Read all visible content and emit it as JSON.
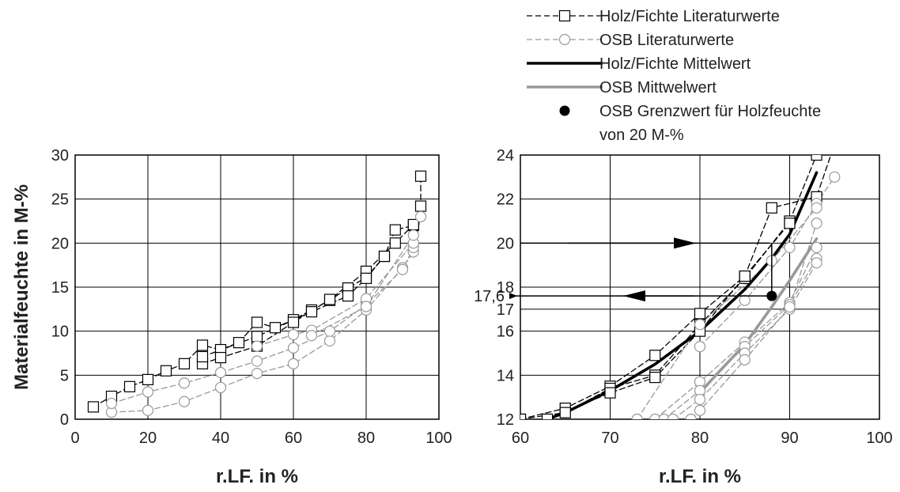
{
  "chart_data": [
    {
      "type": "line",
      "xlabel": "r.LF. in %",
      "ylabel": "Materialfeuchte in M-%",
      "xlim": [
        0,
        100
      ],
      "ylim": [
        0,
        30
      ],
      "xticks": [
        0,
        20,
        40,
        60,
        80,
        100
      ],
      "yticks": [
        0,
        5,
        10,
        15,
        20,
        25,
        30
      ],
      "grid": true,
      "series": [
        {
          "name": "Holz/Fichte Literaturwerte",
          "style": "dashed-black-square",
          "points": [
            [
              5,
              1.4
            ],
            [
              10,
              2.6
            ],
            [
              15,
              3.7
            ],
            [
              20,
              4.5
            ],
            [
              25,
              5.5
            ],
            [
              30,
              6.3
            ],
            [
              35,
              8.4
            ],
            [
              40,
              7.9
            ],
            [
              45,
              8.7
            ],
            [
              50,
              11.0
            ],
            [
              55,
              10.4
            ],
            [
              60,
              11.3
            ],
            [
              65,
              12.4
            ],
            [
              70,
              13.5
            ],
            [
              75,
              14.9
            ],
            [
              80,
              16.1
            ],
            [
              85,
              18.5
            ],
            [
              88,
              21.5
            ],
            [
              93,
              22.0
            ],
            [
              95,
              24.2
            ],
            [
              95,
              27.6
            ]
          ]
        },
        {
          "name": "Holz/Fichte Literaturwerte",
          "style": "dashed-black-square",
          "points": [
            [
              35,
              6.3
            ],
            [
              40,
              7.0
            ],
            [
              50,
              8.3
            ],
            [
              60,
              11.0
            ],
            [
              70,
              13.6
            ],
            [
              80,
              16.8
            ],
            [
              88,
              20.0
            ],
            [
              93,
              22.1
            ]
          ]
        },
        {
          "name": "Holz/Fichte Literaturwerte",
          "style": "dashed-black-square",
          "points": [
            [
              35,
              7.1
            ],
            [
              50,
              9.4
            ],
            [
              65,
              12.2
            ],
            [
              75,
              14.0
            ],
            [
              80,
              16.0
            ],
            [
              85,
              18.5
            ]
          ]
        },
        {
          "name": "OSB Literaturwerte",
          "style": "dashed-gray-circle",
          "points": [
            [
              10,
              0.8
            ],
            [
              20,
              1.0
            ],
            [
              30,
              2.0
            ],
            [
              40,
              3.6
            ],
            [
              50,
              5.2
            ],
            [
              60,
              6.3
            ],
            [
              70,
              8.9
            ],
            [
              80,
              12.4
            ],
            [
              90,
              17.2
            ],
            [
              93,
              19.0
            ],
            [
              95,
              23.0
            ]
          ]
        },
        {
          "name": "OSB Literaturwerte",
          "style": "dashed-gray-circle",
          "points": [
            [
              10,
              1.8
            ],
            [
              20,
              3.1
            ],
            [
              30,
              4.1
            ],
            [
              40,
              5.3
            ],
            [
              50,
              6.6
            ],
            [
              60,
              8.1
            ],
            [
              70,
              10.0
            ],
            [
              80,
              13.0
            ],
            [
              90,
              17.0
            ],
            [
              93,
              19.5
            ]
          ]
        },
        {
          "name": "OSB Literaturwerte",
          "style": "dashed-gray-circle",
          "points": [
            [
              50,
              8.3
            ],
            [
              60,
              9.6
            ],
            [
              65,
              10.1
            ],
            [
              80,
              13.7
            ],
            [
              93,
              20.0
            ]
          ]
        },
        {
          "name": "OSB Literaturwerte",
          "style": "dashed-gray-circle",
          "points": [
            [
              65,
              9.5
            ],
            [
              80,
              12.8
            ],
            [
              93,
              20.9
            ]
          ]
        }
      ]
    },
    {
      "type": "line",
      "xlabel": "r.LF. in %",
      "ylabel": "",
      "xlim": [
        60,
        100
      ],
      "ylim": [
        12,
        24
      ],
      "xticks": [
        60,
        70,
        80,
        90,
        100
      ],
      "yticks": [
        12,
        14,
        16,
        17,
        18,
        20,
        22,
        24
      ],
      "grid": true,
      "annotation_label": "17,6",
      "annotation_value": 17.6,
      "threshold_point": [
        88,
        17.6
      ],
      "threshold_value": 20,
      "series": [
        {
          "name": "Holz/Fichte Literaturwerte",
          "style": "dashed-black-square",
          "points": [
            [
              60,
              12.0
            ],
            [
              65,
              12.5
            ],
            [
              70,
              13.5
            ],
            [
              75,
              14.9
            ],
            [
              80,
              16.8
            ],
            [
              85,
              18.5
            ],
            [
              88,
              21.6
            ],
            [
              93,
              22.1
            ],
            [
              95,
              24.5
            ]
          ]
        },
        {
          "name": "Holz/Fichte Literaturwerte",
          "style": "dashed-black-square",
          "points": [
            [
              60,
              12.0
            ],
            [
              65,
              12.3
            ],
            [
              70,
              13.4
            ],
            [
              75,
              14.0
            ],
            [
              80,
              16.3
            ],
            [
              85,
              18.4
            ],
            [
              90,
              21.0
            ],
            [
              93,
              24.0
            ]
          ]
        },
        {
          "name": "Holz/Fichte Literaturwerte",
          "style": "dashed-black-square",
          "points": [
            [
              63,
              12.0
            ],
            [
              70,
              13.2
            ],
            [
              75,
              13.9
            ],
            [
              80,
              16.0
            ],
            [
              85,
              18.5
            ],
            [
              90,
              20.9
            ]
          ]
        },
        {
          "name": "OSB Literaturwerte",
          "style": "dashed-gray-circle",
          "points": [
            [
              80,
              15.3
            ],
            [
              85,
              17.4
            ],
            [
              90,
              19.8
            ],
            [
              93,
              21.8
            ],
            [
              95,
              23.0
            ]
          ]
        },
        {
          "name": "OSB Literaturwerte",
          "style": "dashed-gray-circle",
          "points": [
            [
              75,
              12.0
            ],
            [
              80,
              13.7
            ],
            [
              85,
              15.5
            ],
            [
              90,
              17.3
            ],
            [
              93,
              19.8
            ]
          ]
        },
        {
          "name": "OSB Literaturwerte",
          "style": "dashed-gray-circle",
          "points": [
            [
              76,
              12.0
            ],
            [
              80,
              13.3
            ],
            [
              85,
              15.3
            ],
            [
              90,
              17.2
            ],
            [
              93,
              19.3
            ]
          ]
        },
        {
          "name": "OSB Literaturwerte",
          "style": "dashed-gray-circle",
          "points": [
            [
              77,
              12.0
            ],
            [
              80,
              12.9
            ],
            [
              85,
              15.0
            ],
            [
              90,
              17.0
            ],
            [
              93,
              19.1
            ]
          ]
        },
        {
          "name": "OSB Literaturwerte",
          "style": "dashed-gray-circle",
          "points": [
            [
              79,
              12.0
            ],
            [
              80,
              12.4
            ],
            [
              85,
              14.7
            ],
            [
              90,
              17.1
            ],
            [
              93,
              20.9
            ]
          ]
        },
        {
          "name": "OSB Literaturwerte",
          "style": "dashed-gray-circle",
          "points": [
            [
              73,
              12.0
            ],
            [
              80,
              16.3
            ],
            [
              88,
              19.2
            ],
            [
              93,
              21.6
            ]
          ]
        },
        {
          "name": "Holz/Fichte Mittelwert",
          "style": "solid-black-thick",
          "points": [
            [
              63,
              12.0
            ],
            [
              65,
              12.3
            ],
            [
              70,
              13.3
            ],
            [
              75,
              14.5
            ],
            [
              80,
              16.0
            ],
            [
              85,
              17.9
            ],
            [
              88,
              19.3
            ],
            [
              90,
              20.4
            ],
            [
              93,
              23.2
            ]
          ]
        },
        {
          "name": "OSB Mittwelwert",
          "style": "solid-gray-thick",
          "points": [
            [
              80,
              13.2
            ],
            [
              82,
              14.1
            ],
            [
              85,
              15.4
            ],
            [
              88,
              17.1
            ],
            [
              90,
              18.3
            ],
            [
              93,
              20.2
            ]
          ]
        }
      ]
    }
  ],
  "legend": {
    "items": [
      {
        "label": "Holz/Fichte Literaturwerte",
        "style": "dashed-black-square"
      },
      {
        "label": "OSB Literaturwerte",
        "style": "dashed-gray-circle"
      },
      {
        "label": "Holz/Fichte Mittelwert",
        "style": "solid-black-thick"
      },
      {
        "label": "OSB Mittwelwert",
        "style": "solid-gray-thick"
      },
      {
        "label": "OSB Grenzwert für Holzfeuchte",
        "style": "black-dot"
      }
    ],
    "continuation": "von 20 M-%"
  },
  "colors": {
    "black": "#000000",
    "gray": "#999999",
    "grid": "#000000"
  }
}
